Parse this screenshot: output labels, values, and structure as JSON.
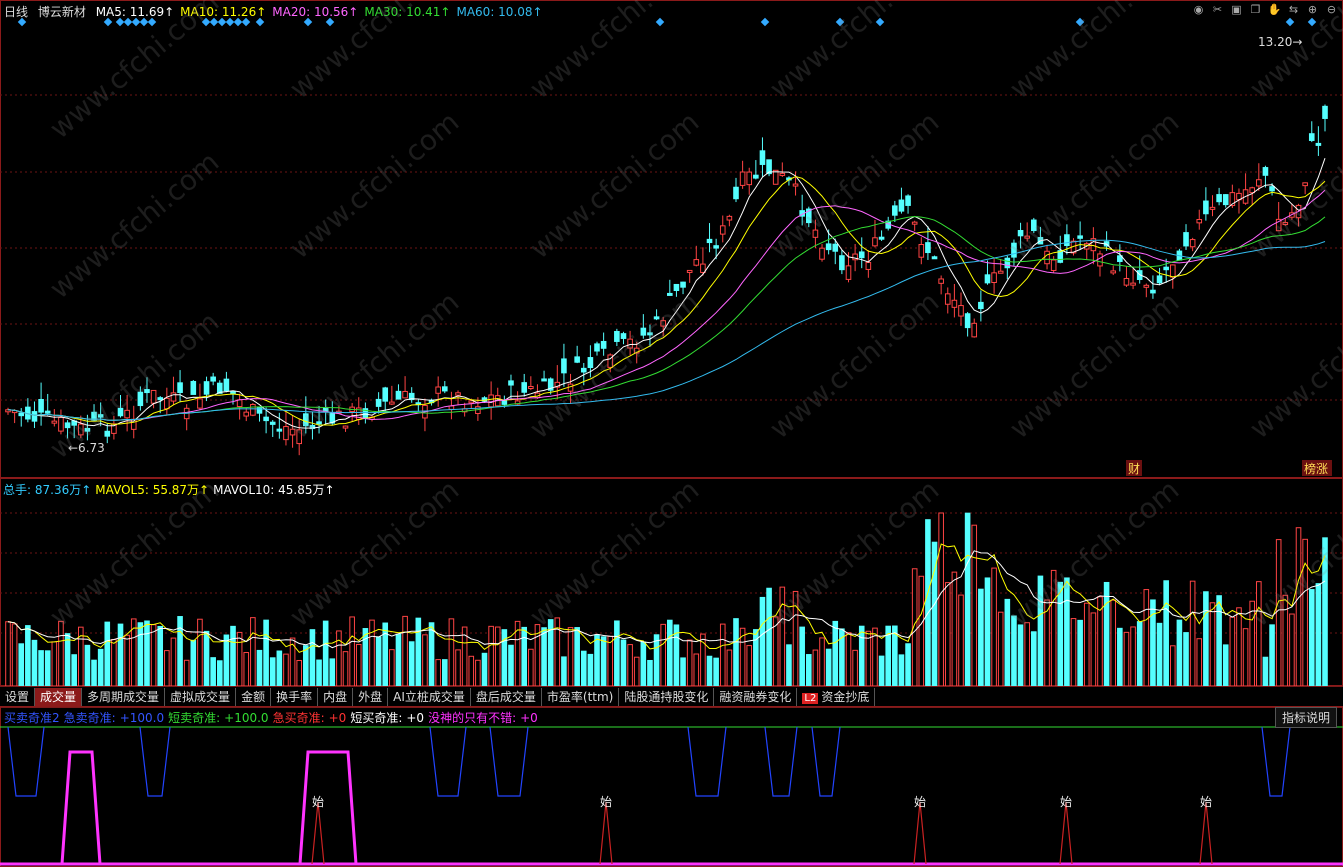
{
  "header": {
    "period": "日线",
    "stock_name": "博云新材",
    "ma": [
      {
        "label": "MA5:",
        "value": "11.69",
        "arrow": "↑",
        "color": "#ffffff"
      },
      {
        "label": "MA10:",
        "value": "11.26",
        "arrow": "↑",
        "color": "#ffff00"
      },
      {
        "label": "MA20:",
        "value": "10.56",
        "arrow": "↑",
        "color": "#ff66ff"
      },
      {
        "label": "MA30:",
        "value": "10.41",
        "arrow": "↑",
        "color": "#33dd33"
      },
      {
        "label": "MA60:",
        "value": "10.08",
        "arrow": "↑",
        "color": "#33bbee"
      }
    ]
  },
  "toolbar_icons": [
    "eye-icon",
    "scissors-icon",
    "lock-icon",
    "copy-icon",
    "hand-icon",
    "arrows-icon",
    "zoom-in-icon",
    "zoom-out-icon"
  ],
  "price_chart": {
    "high_label": "13.20→",
    "low_label": "←6.73",
    "markers": [
      "财",
      "榜涨"
    ],
    "watermark": "www.cfchi.com"
  },
  "volume": {
    "legend": [
      {
        "label": "总手:",
        "value": "87.36万",
        "arrow": "↑",
        "color": "#33ccff"
      },
      {
        "label": "MAVOL5:",
        "value": "55.87万",
        "arrow": "↑",
        "color": "#ffff00"
      },
      {
        "label": "MAVOL10:",
        "value": "45.85万",
        "arrow": "↑",
        "color": "#ffffff"
      }
    ]
  },
  "tabs": [
    {
      "label": "设置",
      "active": false
    },
    {
      "label": "成交量",
      "active": true
    },
    {
      "label": "多周期成交量",
      "active": false
    },
    {
      "label": "虚拟成交量",
      "active": false
    },
    {
      "label": "金额",
      "active": false
    },
    {
      "label": "换手率",
      "active": false
    },
    {
      "label": "内盘",
      "active": false
    },
    {
      "label": "外盘",
      "active": false
    },
    {
      "label": "AI立桩成交量",
      "active": false
    },
    {
      "label": "盘后成交量",
      "active": false
    },
    {
      "label": "市盈率(ttm)",
      "active": false
    },
    {
      "label": "陆股通持股变化",
      "active": false
    },
    {
      "label": "融资融券变化",
      "active": false
    },
    {
      "label": "资金抄底",
      "active": false,
      "badge": "L2"
    }
  ],
  "indicator": {
    "legend": [
      {
        "text": "买卖奇准2",
        "color": "#3355ff"
      },
      {
        "text": "急卖奇准:",
        "color": "#3355ff"
      },
      {
        "text": "+100.0",
        "color": "#3355ff"
      },
      {
        "text": "短卖奇准:",
        "color": "#33dd33"
      },
      {
        "text": "+100.0",
        "color": "#33dd33"
      },
      {
        "text": "急买奇准:",
        "color": "#ff3333"
      },
      {
        "text": "+0",
        "color": "#ff3333"
      },
      {
        "text": "短买奇准:",
        "color": "#ffffff"
      },
      {
        "text": "+0",
        "color": "#ffffff"
      },
      {
        "text": "没神的只有不错:",
        "color": "#ff33ff"
      },
      {
        "text": "+0",
        "color": "#ff33ff"
      }
    ],
    "help": "指标说明",
    "signals": [
      "始",
      "始",
      "始",
      "始",
      "始"
    ]
  }
}
